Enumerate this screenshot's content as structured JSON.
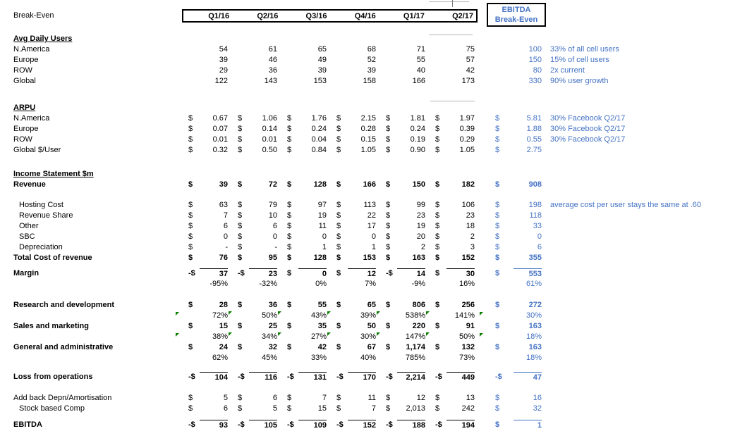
{
  "header": {
    "title": "Break-Even",
    "quarters": [
      "Q1/16",
      "Q2/16",
      "Q3/16",
      "Q4/16",
      "Q1/17",
      "Q2/17"
    ],
    "ebitda_box": {
      "line1": "EBITDA",
      "line2": "Break-Even"
    }
  },
  "colors": {
    "accent_blue": "#4472C4",
    "flag_green": "#0a7d00",
    "grid_gray": "#b3b3b3",
    "border_black": "#000000"
  },
  "rows": [
    {
      "type": "sec",
      "label": "Avg Daily Users"
    },
    {
      "type": "row",
      "label": "N.America",
      "cells": [
        "54",
        "61",
        "65",
        "68",
        "71",
        "75"
      ],
      "eb": "100",
      "note": "33% of all cell users"
    },
    {
      "type": "row",
      "label": "Europe",
      "cells": [
        "39",
        "46",
        "49",
        "52",
        "55",
        "57"
      ],
      "eb": "150",
      "note": "15% of cell users"
    },
    {
      "type": "row",
      "label": "ROW",
      "cells": [
        "29",
        "36",
        "39",
        "39",
        "40",
        "42"
      ],
      "eb": "80",
      "note": "2x current"
    },
    {
      "type": "row",
      "label": "Global",
      "cells": [
        "122",
        "143",
        "153",
        "158",
        "166",
        "173"
      ],
      "eb": "330",
      "note": "90% user growth"
    },
    {
      "type": "blank",
      "h": 23
    },
    {
      "type": "sec",
      "label": "ARPU"
    },
    {
      "type": "row",
      "label": "N.America",
      "signs": "$",
      "cells": [
        "0.67",
        "1.06",
        "1.76",
        "2.15",
        "1.81",
        "1.97"
      ],
      "ebSign": "$",
      "eb": "5.81",
      "note": "30% Facebook Q2/17"
    },
    {
      "type": "row",
      "label": "Europe",
      "signs": "$",
      "cells": [
        "0.07",
        "0.14",
        "0.24",
        "0.28",
        "0.24",
        "0.39"
      ],
      "ebSign": "$",
      "eb": "1.88",
      "note": "30% Facebook Q2/17"
    },
    {
      "type": "row",
      "label": "ROW",
      "signs": "$",
      "cells": [
        "0.01",
        "0.01",
        "0.04",
        "0.15",
        "0.19",
        "0.29"
      ],
      "ebSign": "$",
      "eb": "0.55",
      "note": "30% Facebook Q2/17"
    },
    {
      "type": "row",
      "label": "Global $/User",
      "signs": "$",
      "cells": [
        "0.32",
        "0.50",
        "0.84",
        "1.05",
        "0.90",
        "1.05"
      ],
      "ebSign": "$",
      "eb": "2.75"
    },
    {
      "type": "blank",
      "h": 19
    },
    {
      "type": "sec",
      "label": "Income Statement $m"
    },
    {
      "type": "row",
      "label": "Revenue",
      "bold": true,
      "signs": "$",
      "cells": [
        "39",
        "72",
        "128",
        "166",
        "150",
        "182"
      ],
      "ebSign": "$",
      "eb": "908"
    },
    {
      "type": "blank",
      "h": 14
    },
    {
      "type": "row",
      "label": "Hosting Cost",
      "indent": true,
      "signs": "$",
      "cells": [
        "63",
        "79",
        "97",
        "113",
        "99",
        "106"
      ],
      "ebSign": "$",
      "eb": "198",
      "note": "average cost per user stays the same at .60"
    },
    {
      "type": "row",
      "label": "Revenue Share",
      "indent": true,
      "signs": "$",
      "cells": [
        "7",
        "10",
        "19",
        "22",
        "23",
        "23"
      ],
      "ebSign": "$",
      "eb": "118"
    },
    {
      "type": "row",
      "label": "Other",
      "indent": true,
      "signs": "$",
      "cells": [
        "6",
        "6",
        "11",
        "17",
        "19",
        "18"
      ],
      "ebSign": "$",
      "eb": "33"
    },
    {
      "type": "row",
      "label": "SBC",
      "indent": true,
      "signs": "$",
      "cells": [
        "0",
        "0",
        "0",
        "0",
        "20",
        "2"
      ],
      "ebSign": "$",
      "eb": "0"
    },
    {
      "type": "row",
      "label": "Depreciation",
      "indent": true,
      "signs": "$",
      "cells": [
        "-",
        "-",
        "1",
        "1",
        "2",
        "3"
      ],
      "ebSign": "$",
      "eb": "6"
    },
    {
      "type": "row",
      "label": "Total Cost of revenue",
      "bold": true,
      "signs": "$",
      "cells": [
        "76",
        "95",
        "128",
        "153",
        "163",
        "152"
      ],
      "ebSign": "$",
      "eb": "355"
    },
    {
      "type": "blank",
      "h": 7
    },
    {
      "type": "row",
      "label": "Margin",
      "bold": true,
      "border": true,
      "signs": [
        "-$",
        "-$",
        "$",
        "$",
        "-$",
        "$"
      ],
      "cells": [
        "37",
        "23",
        "0",
        "12",
        "14",
        "30"
      ],
      "ebSign": "$",
      "eb": "553"
    },
    {
      "type": "pct",
      "cells": [
        "-95%",
        "-32%",
        "0%",
        "7%",
        "-9%",
        "16%"
      ],
      "eb": "61%"
    },
    {
      "type": "blank",
      "h": 15
    },
    {
      "type": "row",
      "label": "Research and development",
      "bold": true,
      "signs": "$",
      "cells": [
        "28",
        "36",
        "55",
        "65",
        "806",
        "256"
      ],
      "ebSign": "$",
      "eb": "272"
    },
    {
      "type": "pct",
      "cells": [
        "72%",
        "50%",
        "43%",
        "39%",
        "538%",
        "141%"
      ],
      "eb": "30%",
      "flags": true
    },
    {
      "type": "row",
      "label": "Sales and marketing",
      "bold": true,
      "signs": "$",
      "cells": [
        "15",
        "25",
        "35",
        "50",
        "220",
        "91"
      ],
      "ebSign": "$",
      "eb": "163"
    },
    {
      "type": "pct",
      "cells": [
        "38%",
        "34%",
        "27%",
        "30%",
        "147%",
        "50%"
      ],
      "eb": "18%",
      "flags": true
    },
    {
      "type": "row",
      "label": "General and administrative",
      "bold": true,
      "signs": "$",
      "cells": [
        "24",
        "32",
        "42",
        "67",
        "1,174",
        "132"
      ],
      "ebSign": "$",
      "eb": "163"
    },
    {
      "type": "pct",
      "cells": [
        "62%",
        "45%",
        "33%",
        "40%",
        "785%",
        "73%"
      ],
      "eb": "18%"
    },
    {
      "type": "blank",
      "h": 12
    },
    {
      "type": "row",
      "label": "Loss from operations",
      "bold": true,
      "border": true,
      "signs": [
        "-$",
        "-$",
        "-$",
        "-$",
        "-$",
        "-$"
      ],
      "cells": [
        "104",
        "116",
        "131",
        "170",
        "2,214",
        "449"
      ],
      "ebSign": "-$",
      "eb": "47"
    },
    {
      "type": "blank",
      "h": 15
    },
    {
      "type": "row",
      "label": "Add back Depn/Amortisation",
      "signs": "$",
      "cells": [
        "5",
        "6",
        "7",
        "11",
        "12",
        "13"
      ],
      "ebSign": "$",
      "eb": "16"
    },
    {
      "type": "row",
      "label": "Stock based Comp",
      "indent": true,
      "signs": "$",
      "cells": [
        "6",
        "5",
        "15",
        "7",
        "2,013",
        "242"
      ],
      "ebSign": "$",
      "eb": "32"
    },
    {
      "type": "blank",
      "h": 8
    },
    {
      "type": "row",
      "label": "EBITDA",
      "bold": true,
      "border": true,
      "signs": [
        "-$",
        "-$",
        "-$",
        "-$",
        "-$",
        "-$"
      ],
      "cells": [
        "93",
        "105",
        "109",
        "152",
        "188",
        "194"
      ],
      "ebSign": "$",
      "eb": "1"
    }
  ]
}
